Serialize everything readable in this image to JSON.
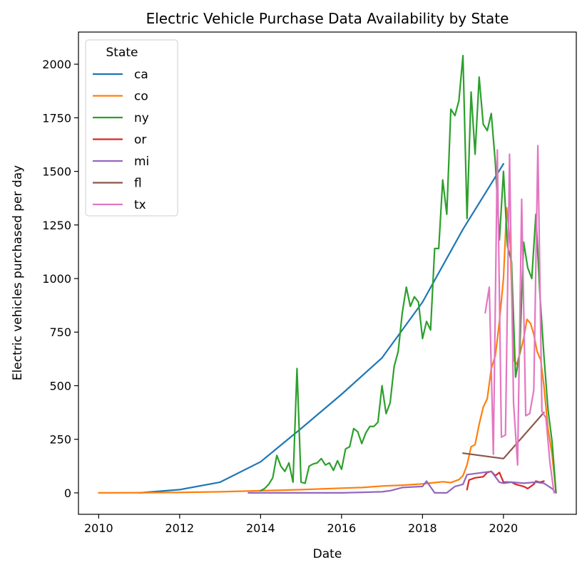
{
  "chart_data": {
    "type": "line",
    "title": "Electric Vehicle Purchase Data Availability by State",
    "xlabel": "Date",
    "ylabel": "Electric vehicles purchased per day",
    "xlim": [
      2009.5,
      2021.8
    ],
    "ylim": [
      -100,
      2150
    ],
    "xticks": [
      2010,
      2012,
      2014,
      2016,
      2018,
      2020
    ],
    "yticks": [
      0,
      250,
      500,
      750,
      1000,
      1250,
      1500,
      1750,
      2000
    ],
    "grid": false,
    "legend": {
      "title": "State",
      "placement": "top-left"
    },
    "series": [
      {
        "name": "ca",
        "color": "#1f77b4",
        "x": [
          2011,
          2012,
          2013,
          2014,
          2015,
          2016,
          2017,
          2018,
          2019,
          2020
        ],
        "y": [
          0,
          15,
          50,
          145,
          300,
          460,
          630,
          890,
          1230,
          1535
        ]
      },
      {
        "name": "co",
        "color": "#ff7f0e",
        "x": [
          2010,
          2011,
          2012,
          2013,
          2014,
          2015,
          2016,
          2016.5,
          2017,
          2017.5,
          2018,
          2018.3,
          2018.5,
          2018.7,
          2018.9,
          2019,
          2019.1,
          2019.2,
          2019.3,
          2019.4,
          2019.5,
          2019.6,
          2019.7,
          2019.8,
          2019.9,
          2020,
          2020.08,
          2020.17,
          2020.25,
          2020.33,
          2020.42,
          2020.5,
          2020.58,
          2020.67,
          2020.75,
          2020.83,
          2020.92,
          2021,
          2021.1,
          2021.2,
          2021.3
        ],
        "y": [
          0,
          1,
          2,
          5,
          10,
          15,
          22,
          25,
          32,
          36,
          42,
          48,
          52,
          48,
          62,
          80,
          130,
          215,
          225,
          320,
          400,
          440,
          580,
          640,
          800,
          1000,
          1330,
          1160,
          620,
          600,
          660,
          720,
          810,
          790,
          740,
          660,
          620,
          500,
          300,
          180,
          0
        ]
      },
      {
        "name": "ny",
        "color": "#2ca02c",
        "x": [
          2014,
          2014.1,
          2014.2,
          2014.3,
          2014.4,
          2014.5,
          2014.6,
          2014.7,
          2014.8,
          2014.9,
          2015,
          2015.1,
          2015.2,
          2015.3,
          2015.4,
          2015.5,
          2015.6,
          2015.7,
          2015.8,
          2015.9,
          2016,
          2016.1,
          2016.2,
          2016.3,
          2016.4,
          2016.5,
          2016.6,
          2016.7,
          2016.8,
          2016.9,
          2017,
          2017.1,
          2017.2,
          2017.3,
          2017.4,
          2017.5,
          2017.6,
          2017.7,
          2017.8,
          2017.9,
          2018,
          2018.1,
          2018.2,
          2018.3,
          2018.4,
          2018.5,
          2018.6,
          2018.7,
          2018.8,
          2018.9,
          2019,
          2019.1,
          2019.2,
          2019.3,
          2019.4,
          2019.5,
          2019.6,
          2019.7,
          2019.8,
          2019.9,
          2020,
          2020.1,
          2020.2,
          2020.3,
          2020.4,
          2020.5,
          2020.6,
          2020.7,
          2020.8,
          2020.9,
          2021,
          2021.1,
          2021.2,
          2021.3
        ],
        "y": [
          10,
          20,
          40,
          70,
          175,
          125,
          100,
          140,
          50,
          580,
          50,
          45,
          125,
          135,
          140,
          160,
          130,
          140,
          105,
          150,
          110,
          205,
          215,
          300,
          285,
          230,
          280,
          310,
          310,
          330,
          500,
          370,
          420,
          590,
          660,
          840,
          960,
          870,
          915,
          890,
          720,
          800,
          760,
          1140,
          1140,
          1460,
          1300,
          1790,
          1760,
          1830,
          2040,
          1280,
          1870,
          1580,
          1940,
          1720,
          1690,
          1770,
          1540,
          1180,
          1500,
          1150,
          1080,
          540,
          650,
          1170,
          1050,
          1000,
          1300,
          930,
          640,
          390,
          240,
          0
        ]
      },
      {
        "name": "or",
        "color": "#d62728",
        "x": [
          2019.1,
          2019.15,
          2019.3,
          2019.5,
          2019.6,
          2019.7,
          2019.8,
          2019.9,
          2020,
          2020.2,
          2020.3,
          2020.5,
          2020.6,
          2020.75,
          2020.8,
          2020.9,
          2021
        ],
        "y": [
          15,
          60,
          70,
          75,
          95,
          100,
          80,
          95,
          50,
          50,
          40,
          30,
          20,
          40,
          55,
          50,
          55
        ]
      },
      {
        "name": "mi",
        "color": "#9467bd",
        "x": [
          2013.7,
          2014,
          2015,
          2016,
          2017,
          2017.2,
          2017.5,
          2018,
          2018.1,
          2018.3,
          2018.6,
          2018.8,
          2019,
          2019.1,
          2019.3,
          2019.5,
          2019.7,
          2019.9,
          2020,
          2020.2,
          2020.5,
          2020.8,
          2021,
          2021.2,
          2021.3
        ],
        "y": [
          0,
          0,
          0,
          0,
          5,
          10,
          25,
          30,
          55,
          0,
          0,
          30,
          40,
          85,
          90,
          95,
          100,
          50,
          45,
          50,
          45,
          50,
          45,
          20,
          0
        ]
      },
      {
        "name": "fl",
        "color": "#8c564b",
        "x": [
          2019,
          2020,
          2021
        ],
        "y": [
          185,
          160,
          375
        ]
      },
      {
        "name": "tx",
        "color": "#e377c2",
        "x": [
          2019.55,
          2019.65,
          2019.75,
          2019.85,
          2019.95,
          2020.05,
          2020.15,
          2020.25,
          2020.35,
          2020.45,
          2020.55,
          2020.65,
          2020.75,
          2020.85,
          2020.95,
          2021.05,
          2021.15,
          2021.25
        ],
        "y": [
          840,
          960,
          180,
          1600,
          260,
          270,
          1580,
          420,
          130,
          1370,
          360,
          370,
          480,
          1620,
          380,
          350,
          140,
          0
        ]
      }
    ]
  }
}
